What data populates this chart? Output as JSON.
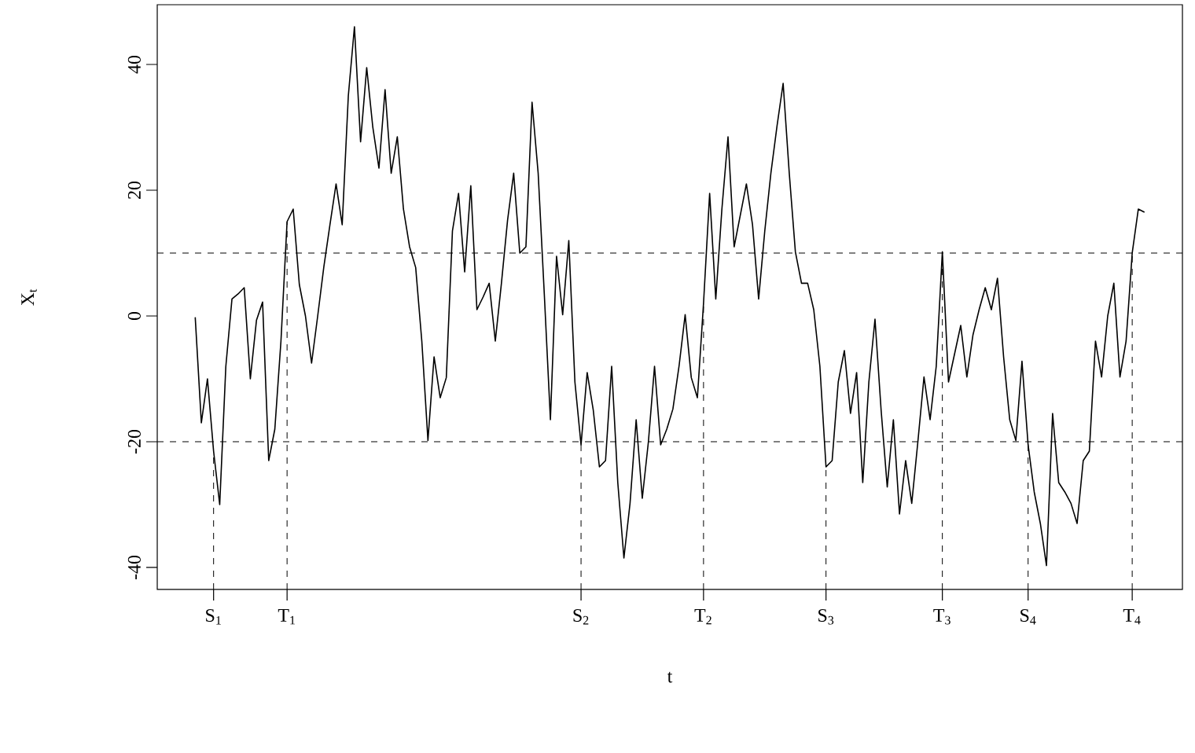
{
  "chart_data": {
    "type": "line",
    "xlabel": "t",
    "ylabel": "X$_{t}$",
    "categories": [
      null,
      null,
      null,
      "S$_{1}$",
      null,
      null,
      null,
      null,
      null,
      null,
      null,
      null,
      null,
      null,
      null,
      "T$_{1}$",
      null,
      null,
      null,
      null,
      null,
      null,
      null,
      null,
      null,
      null,
      null,
      null,
      null,
      null,
      null,
      null,
      null,
      null,
      null,
      null,
      null,
      null,
      null,
      null,
      null,
      null,
      null,
      null,
      null,
      null,
      null,
      null,
      null,
      null,
      null,
      null,
      null,
      null,
      null,
      null,
      null,
      null,
      null,
      null,
      null,
      null,
      null,
      "S$_{2}$",
      null,
      null,
      null,
      null,
      null,
      null,
      null,
      null,
      null,
      null,
      null,
      null,
      null,
      null,
      null,
      null,
      null,
      null,
      null,
      "T$_{2}$",
      null,
      null,
      null,
      null,
      null,
      null,
      null,
      null,
      null,
      null,
      null,
      null,
      null,
      null,
      null,
      null,
      null,
      null,
      null,
      "S$_{3}$",
      null,
      null,
      null,
      null,
      null,
      null,
      null,
      null,
      null,
      null,
      null,
      null,
      null,
      null,
      null,
      null,
      null,
      null,
      "T$_{3}$",
      null,
      null,
      null,
      null,
      null,
      null,
      null,
      null,
      null,
      null,
      null,
      null,
      null,
      "S$_{4}$",
      null,
      null,
      null,
      null,
      null,
      null,
      null,
      null,
      null,
      null,
      null,
      null,
      null,
      null,
      null,
      null,
      "T$_{4}$",
      null,
      null
    ],
    "ylim": [
      -43.5,
      49.5
    ],
    "yticks": [
      -40,
      -20,
      0,
      20,
      40
    ],
    "grid": false,
    "marker": "none",
    "line_style": "solid",
    "ref_lines": [
      {
        "axis": "y",
        "value": 10,
        "line_style": "dashed"
      },
      {
        "axis": "y",
        "value": -20,
        "line_style": "dashed"
      },
      {
        "axis": "x",
        "value": "S$_{1}$",
        "line_style": "dashed"
      },
      {
        "axis": "x",
        "value": "T$_{1}$",
        "line_style": "dashed"
      },
      {
        "axis": "x",
        "value": "S$_{2}$",
        "line_style": "dashed"
      },
      {
        "axis": "x",
        "value": "T$_{2}$",
        "line_style": "dashed"
      },
      {
        "axis": "x",
        "value": "S$_{3}$",
        "line_style": "dashed"
      },
      {
        "axis": "x",
        "value": "T$_{3}$",
        "line_style": "dashed"
      },
      {
        "axis": "x",
        "value": "S$_{4}$",
        "line_style": "dashed"
      },
      {
        "axis": "x",
        "value": "T$_{4}$",
        "line_style": "dashed"
      }
    ],
    "series": [
      {
        "color": "#000000",
        "values": [
          -0.2,
          -17,
          -10,
          -21.5,
          -30,
          -8,
          2.7,
          3.5,
          4.5,
          -10,
          -0.7,
          2.2,
          -23,
          -18,
          -4,
          15,
          17,
          5,
          0,
          -7.5,
          0,
          7.8,
          14.5,
          21,
          14.5,
          35,
          46,
          27.7,
          39.5,
          30,
          23.5,
          36,
          22.7,
          28.5,
          17,
          11,
          7.7,
          -4,
          -19.8,
          -6.5,
          -13,
          -9.8,
          13.5,
          19.5,
          7,
          20.7,
          1,
          3,
          5.2,
          -4,
          5.2,
          15.2,
          22.7,
          10,
          11,
          34,
          22.7,
          3.5,
          -16.5,
          9.5,
          0.2,
          12,
          -10.5,
          -20.5,
          -9,
          -15,
          -24,
          -23,
          -8,
          -26.5,
          -38.5,
          -29.8,
          -16.5,
          -29,
          -20,
          -8,
          -20.5,
          -18,
          -14.8,
          -8,
          0.2,
          -9.8,
          -13,
          2,
          19.5,
          2.7,
          17,
          28.5,
          11,
          16,
          21,
          14.5,
          2.7,
          13.5,
          22.7,
          30.2,
          37,
          22.7,
          10.2,
          5.2,
          5.2,
          1,
          -8,
          -24,
          -23,
          -10.5,
          -5.5,
          -15.5,
          -9,
          -26.5,
          -10.5,
          -0.5,
          -15,
          -27.2,
          -16.5,
          -31.5,
          -23,
          -29.8,
          -20,
          -9.7,
          -16.5,
          -8,
          10.2,
          -10.5,
          -6,
          -1.5,
          -9.7,
          -3,
          1,
          4.5,
          1,
          6,
          -6.5,
          -16.5,
          -19.8,
          -7.2,
          -20.5,
          -28,
          -33,
          -39.7,
          -15.5,
          -26.5,
          -28,
          -29.8,
          -33,
          -23,
          -21.5,
          -4,
          -9.7,
          0,
          5.2,
          -9.7,
          -4,
          10,
          17,
          16.5
        ]
      }
    ]
  }
}
